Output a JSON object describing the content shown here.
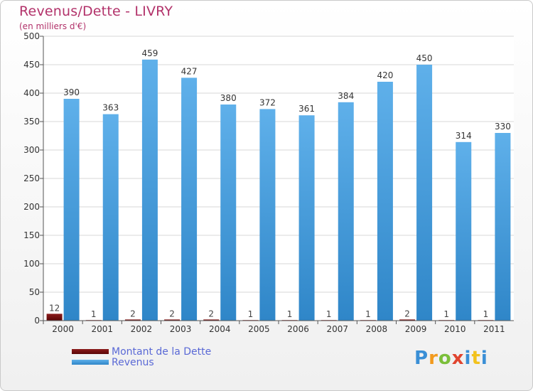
{
  "header": {
    "title": "Revenus/Dette - LIVRY",
    "subtitle": "(en milliers d'€)"
  },
  "legend": {
    "debt_label": "Montant de la Dette",
    "revenue_label": "Revenus"
  },
  "logo": {
    "text": "Proxiti"
  },
  "colors": {
    "debt": "#6b0a0a",
    "revenue": "#4aa3e0",
    "title": "#b2326a",
    "legend_text": "#5a69d6"
  },
  "chart_data": {
    "type": "bar",
    "categories": [
      "2000",
      "2001",
      "2002",
      "2003",
      "2004",
      "2005",
      "2006",
      "2007",
      "2008",
      "2009",
      "2010",
      "2011"
    ],
    "series": [
      {
        "name": "Montant de la Dette",
        "values": [
          12,
          1,
          2,
          2,
          2,
          1,
          1,
          1,
          1,
          2,
          1,
          1
        ]
      },
      {
        "name": "Revenus",
        "values": [
          390,
          363,
          459,
          427,
          380,
          372,
          361,
          384,
          420,
          450,
          314,
          330
        ]
      }
    ],
    "title": "Revenus/Dette - LIVRY",
    "subtitle": "(en milliers d'€)",
    "ylim": [
      0,
      500
    ],
    "yticks": [
      0,
      50,
      100,
      150,
      200,
      250,
      300,
      350,
      400,
      450,
      500
    ],
    "grid": true,
    "legend_position": "bottom-left"
  }
}
